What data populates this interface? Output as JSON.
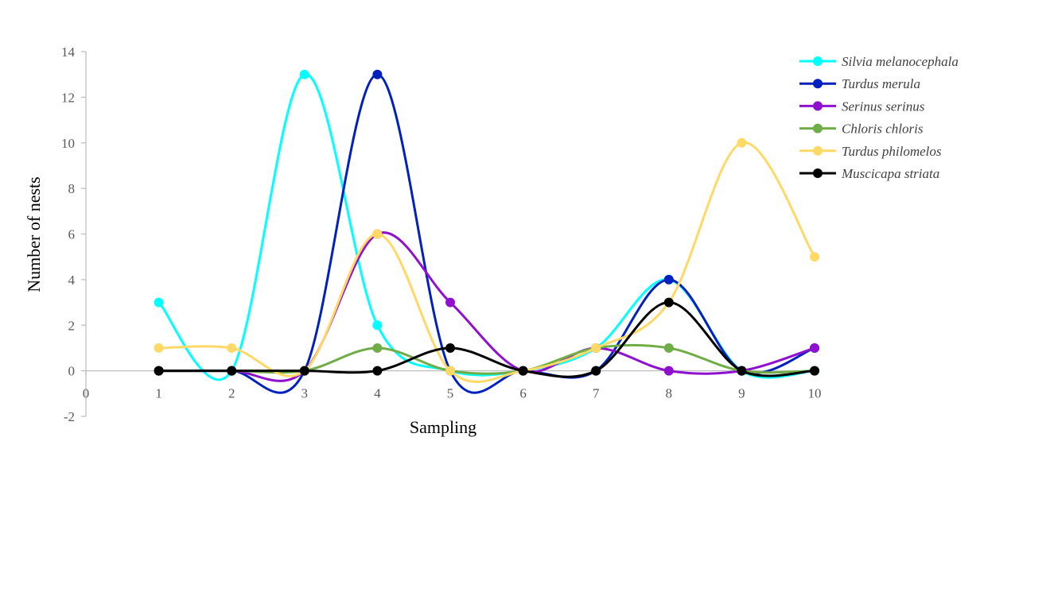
{
  "chart_data": {
    "type": "line",
    "smoothed": true,
    "title": "",
    "xlabel": "Sampling",
    "ylabel": "Number of nests",
    "xlim": [
      0,
      10
    ],
    "ylim": [
      -2,
      14
    ],
    "x_ticks": [
      0,
      1,
      2,
      3,
      4,
      5,
      6,
      7,
      8,
      9,
      10
    ],
    "y_ticks": [
      -2,
      0,
      2,
      4,
      6,
      8,
      10,
      12,
      14
    ],
    "x": [
      1,
      2,
      3,
      4,
      5,
      6,
      7,
      8,
      9,
      10
    ],
    "grid": false,
    "legend_position": "top-right",
    "series": [
      {
        "name": "Silvia melanocephala",
        "color": "#00FFFF",
        "values": [
          3,
          0,
          13,
          2,
          0,
          0,
          1,
          4,
          0,
          0
        ]
      },
      {
        "name": "Turdus merula",
        "color": "#0020C0",
        "values": [
          0,
          0,
          0,
          13,
          0,
          0,
          0,
          4,
          0,
          1
        ]
      },
      {
        "name": "Serinus serinus",
        "color": "#9010D0",
        "values": [
          0,
          0,
          0,
          6,
          3,
          0,
          1,
          0,
          0,
          1
        ]
      },
      {
        "name": "Chloris chloris",
        "color": "#70AD47",
        "values": [
          0,
          0,
          0,
          1,
          0,
          0,
          1,
          1,
          0,
          0
        ]
      },
      {
        "name": "Turdus philomelos",
        "color": "#FFD966",
        "values": [
          1,
          1,
          0,
          6,
          0,
          0,
          1,
          3,
          10,
          5
        ]
      },
      {
        "name": "Muscicapa striata",
        "color": "#000000",
        "values": [
          0,
          0,
          0,
          0,
          1,
          0,
          0,
          3,
          0,
          0
        ]
      }
    ]
  }
}
